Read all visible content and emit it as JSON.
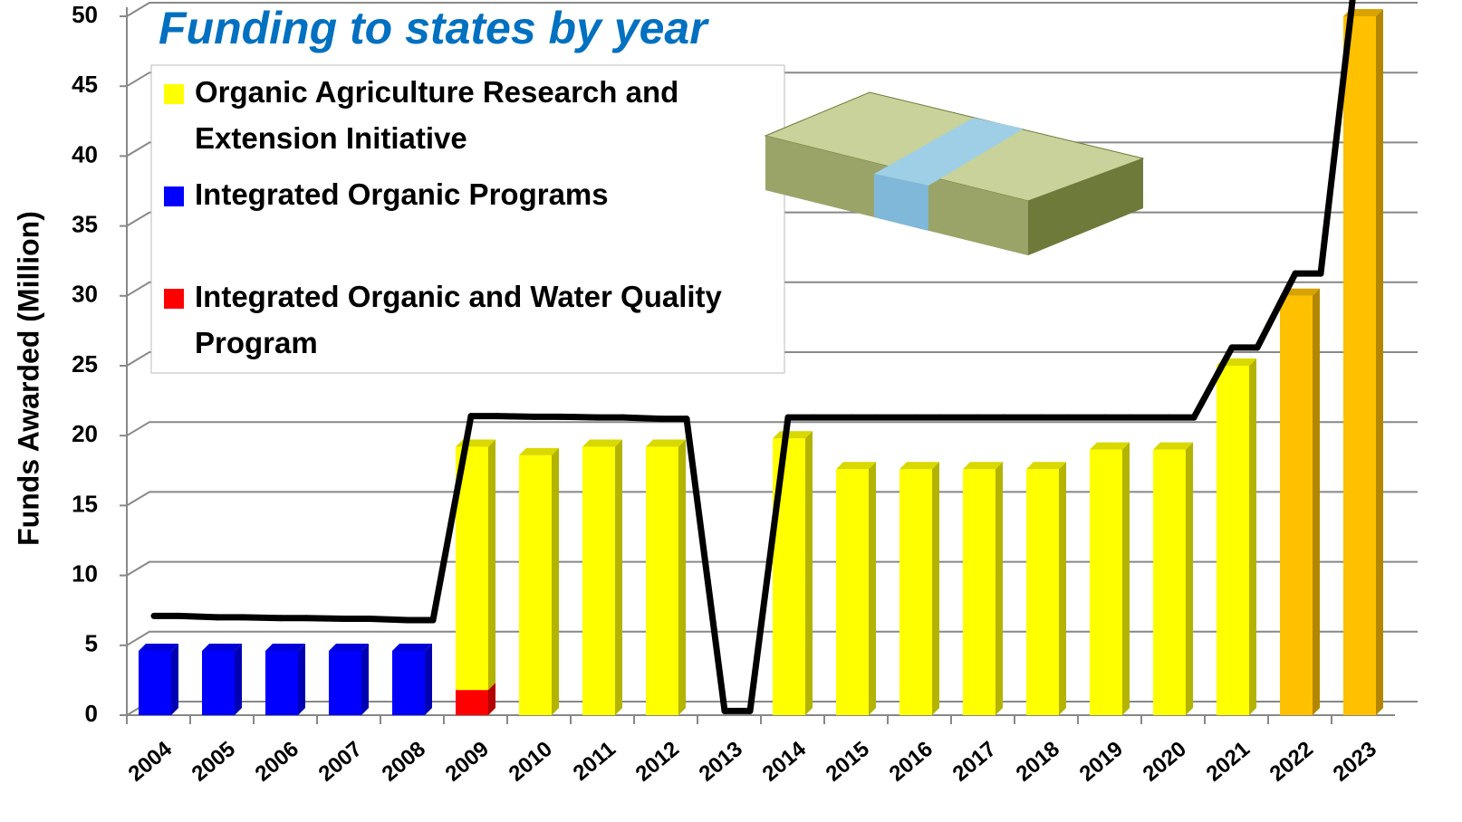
{
  "chart_data": {
    "type": "bar",
    "title": "Funding to states by year",
    "y_label": "Funds Awarded (Million)",
    "categories": [
      "2004",
      "2005",
      "2006",
      "2007",
      "2008",
      "2009",
      "2010",
      "2011",
      "2012",
      "2013",
      "2014",
      "2015",
      "2016",
      "2017",
      "2018",
      "2019",
      "2020",
      "2021",
      "2022",
      "2023"
    ],
    "stacked": true,
    "series": [
      {
        "name": "Organic Agriculture Research and Extension Initiative",
        "color": "#ffff00",
        "point_colors": [
          null,
          null,
          null,
          null,
          null,
          null,
          null,
          null,
          null,
          null,
          null,
          null,
          null,
          null,
          null,
          null,
          null,
          null,
          "#ffc000",
          "#ffc000"
        ],
        "values": [
          null,
          null,
          null,
          null,
          null,
          17.4,
          18.6,
          19.2,
          19.2,
          null,
          19.8,
          17.6,
          17.6,
          17.6,
          17.6,
          19,
          19,
          25,
          30,
          50
        ]
      },
      {
        "name": "Integrated Organic Programs",
        "color": "#0000ff",
        "values": [
          4.6,
          4.6,
          4.6,
          4.6,
          4.6,
          null,
          null,
          null,
          null,
          null,
          null,
          null,
          null,
          null,
          null,
          null,
          null,
          null,
          null,
          null
        ]
      },
      {
        "name": "Integrated Organic and Water Quality Program",
        "color": "#ff0000",
        "values": [
          null,
          null,
          null,
          null,
          null,
          1.8,
          null,
          null,
          null,
          null,
          null,
          null,
          null,
          null,
          null,
          null,
          null,
          null,
          null,
          null
        ]
      }
    ],
    "stack_order": [
      2,
      1,
      0
    ],
    "step_line": {
      "color": "#000000",
      "values": [
        7.1,
        7.0,
        6.95,
        6.9,
        6.8,
        21.4,
        21.35,
        21.3,
        21.2,
        0.3,
        21.3,
        21.3,
        21.3,
        21.3,
        21.3,
        21.3,
        21.3,
        26.3,
        31.6,
        55
      ]
    },
    "ylim": [
      0,
      50
    ],
    "yticks": [
      0,
      5,
      10,
      15,
      20,
      25,
      30,
      35,
      40,
      45,
      50
    ],
    "grid": true,
    "legend": "top-left"
  }
}
